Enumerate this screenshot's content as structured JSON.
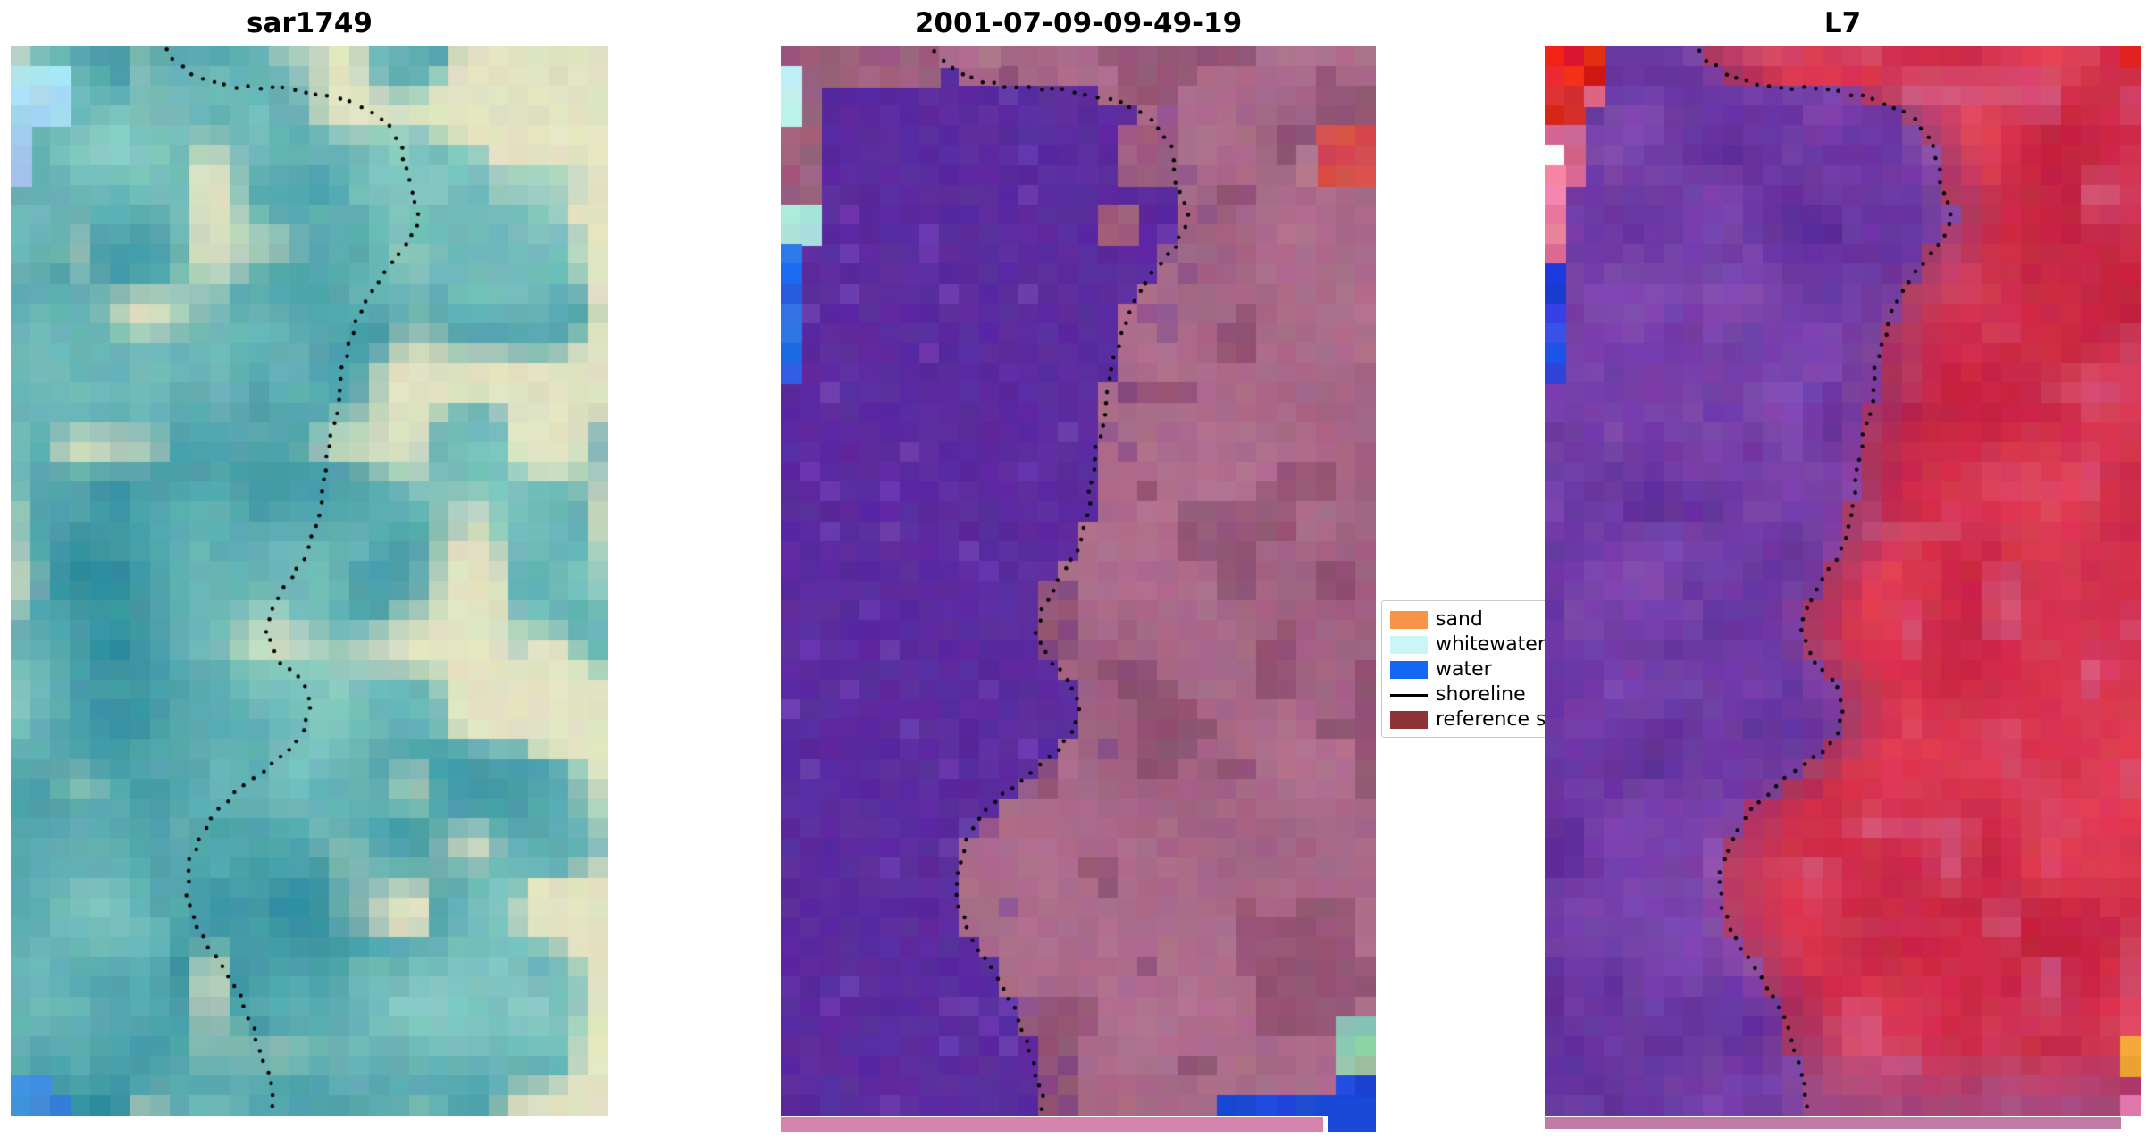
{
  "figure": {
    "background": "#ffffff",
    "panels": [
      {
        "title": "sar1749",
        "palette": {
          "base_dark": "#2e8c9e",
          "base_light": "#8ed0c6",
          "cream": "#ece7c3",
          "cyan_patch": "#a9ddf2",
          "pale_blue": "#9cc8ee",
          "blue_patch": "#3f8fd9"
        }
      },
      {
        "title": "2001-07-09-09-49-19",
        "palette": {
          "water_class": "#5b2b9f",
          "reference_overlay": "#9c5d7f",
          "mauve_light": "#b2718f",
          "mauve_dark": "#7e4263",
          "red_patch": "#d94b4b",
          "cyan_patch": "#bfeef2",
          "whitewater": "#abe6da",
          "blue_patch": "#2a6ce8",
          "green_patch": "#8fcbaa",
          "blue_strip": "#1a49d8",
          "bottom_bar": "#d584ab"
        }
      },
      {
        "title": "L7",
        "palette": {
          "purple_dark": "#50238f",
          "purple_light": "#8a50b8",
          "red_dark": "#c01f3f",
          "red_light": "#e8435a",
          "pink": "#d4648c",
          "violet_mix": "#8c3a78",
          "bottom_mauve": "#9a4f8a",
          "corner_red": "#e42222",
          "white_pixel": "#fafafa",
          "blue_patch": "#2848e0",
          "orange_pixel": "#eda337",
          "pink_pixel": "#e878a8",
          "bottom_bar": "#c27aa6"
        }
      }
    ],
    "legend": {
      "items": [
        {
          "label": "sand",
          "color": "#f79447",
          "type": "patch"
        },
        {
          "label": "whitewater",
          "color": "#ccf5f6",
          "type": "patch"
        },
        {
          "label": "water",
          "color": "#1566f2",
          "type": "patch"
        },
        {
          "label": "shoreline",
          "color": "#000000",
          "type": "line"
        },
        {
          "label": "reference s",
          "color": "#8c3338",
          "type": "patch"
        }
      ]
    }
  },
  "chart_data": [
    {
      "type": "image",
      "title": "sar1749",
      "description": "Teal/cream pseudo-color SAR tile with black dotted shoreline meandering from top-left down to bottom-center; light-blue patch top-left, blue patch bottom-left corner"
    },
    {
      "type": "image",
      "title": "2001-07-09-09-49-19",
      "description": "Classified tile: flat purple water region left of dotted shoreline, semi-transparent maroon reference-sand overlay (mauve) right of it; cyan+blue patches on upper-left edge, red patch upper-right, green patch and blue strip lower-right, pink bar along bottom"
    },
    {
      "type": "image",
      "title": "L7",
      "description": "Landsat-7 false-color tile: purple water region left of dotted shoreline, crimson/red land right of it with violet transition; bright red patches top-left corner, blue patch on left edge, orange pixel lower-right edge, mauve bar along bottom"
    },
    {
      "type": "legend",
      "entries": [
        "sand",
        "whitewater",
        "water",
        "shoreline",
        "reference s"
      ]
    }
  ]
}
